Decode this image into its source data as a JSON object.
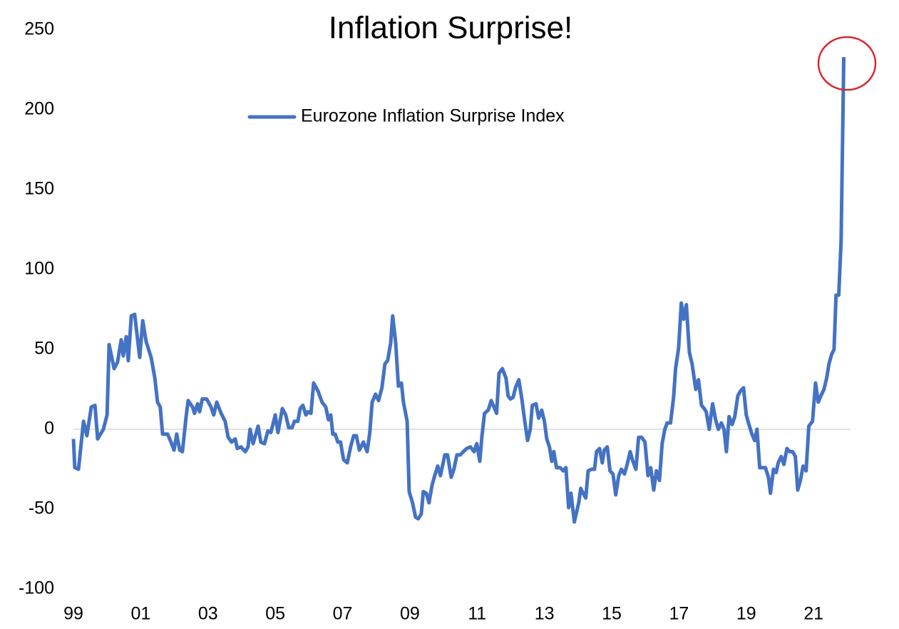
{
  "chart_data": {
    "type": "line",
    "title": "Inflation Surprise!",
    "xlim": [
      1999,
      2022.1
    ],
    "xticks": [
      {
        "value": 1999,
        "label": "99"
      },
      {
        "value": 2001,
        "label": "01"
      },
      {
        "value": 2003,
        "label": "03"
      },
      {
        "value": 2005,
        "label": "05"
      },
      {
        "value": 2007,
        "label": "07"
      },
      {
        "value": 2009,
        "label": "09"
      },
      {
        "value": 2011,
        "label": "11"
      },
      {
        "value": 2013,
        "label": "13"
      },
      {
        "value": 2015,
        "label": "15"
      },
      {
        "value": 2017,
        "label": "17"
      },
      {
        "value": 2019,
        "label": "19"
      },
      {
        "value": 2021,
        "label": "21"
      }
    ],
    "ylim": [
      -100,
      250
    ],
    "yticks": [
      -100,
      -50,
      0,
      50,
      100,
      150,
      200,
      250
    ],
    "legend": "top",
    "x": [
      1999.0,
      1999.04,
      1999.15,
      1999.3,
      1999.4,
      1999.53,
      1999.64,
      1999.72,
      1999.89,
      2000.0,
      2000.06,
      2000.21,
      2000.31,
      2000.42,
      2000.48,
      2000.57,
      2000.63,
      2000.72,
      2000.82,
      2000.97,
      2001.06,
      2001.16,
      2001.31,
      2001.42,
      2001.5,
      2001.58,
      2001.65,
      2001.8,
      2001.9,
      2001.99,
      2002.07,
      2002.16,
      2002.24,
      2002.35,
      2002.41,
      2002.54,
      2002.6,
      2002.69,
      2002.75,
      2002.83,
      2002.96,
      2003.09,
      2003.17,
      2003.26,
      2003.39,
      2003.51,
      2003.6,
      2003.7,
      2003.81,
      2003.87,
      2003.98,
      2004.11,
      2004.19,
      2004.25,
      2004.34,
      2004.49,
      2004.57,
      2004.68,
      2004.78,
      2004.87,
      2005.0,
      2005.08,
      2005.21,
      2005.31,
      2005.4,
      2005.5,
      2005.57,
      2005.67,
      2005.74,
      2005.82,
      2005.91,
      2005.97,
      2006.06,
      2006.14,
      2006.27,
      2006.39,
      2006.5,
      2006.58,
      2006.65,
      2006.71,
      2006.78,
      2006.86,
      2006.94,
      2007.03,
      2007.14,
      2007.24,
      2007.33,
      2007.41,
      2007.5,
      2007.62,
      2007.73,
      2007.81,
      2007.88,
      2007.98,
      2008.07,
      2008.17,
      2008.26,
      2008.34,
      2008.43,
      2008.49,
      2008.58,
      2008.66,
      2008.75,
      2008.81,
      2008.92,
      2008.98,
      2009.08,
      2009.17,
      2009.25,
      2009.34,
      2009.4,
      2009.49,
      2009.57,
      2009.66,
      2009.74,
      2009.83,
      2009.91,
      2010.04,
      2010.12,
      2010.23,
      2010.31,
      2010.4,
      2010.5,
      2010.59,
      2010.69,
      2010.8,
      2010.91,
      2010.99,
      2011.08,
      2011.14,
      2011.22,
      2011.33,
      2011.42,
      2011.52,
      2011.58,
      2011.65,
      2011.75,
      2011.86,
      2011.92,
      2011.99,
      2012.07,
      2012.14,
      2012.24,
      2012.33,
      2012.41,
      2012.5,
      2012.58,
      2012.64,
      2012.75,
      2012.83,
      2012.92,
      2013.0,
      2013.07,
      2013.15,
      2013.22,
      2013.28,
      2013.36,
      2013.47,
      2013.56,
      2013.64,
      2013.72,
      2013.79,
      2013.89,
      2014.02,
      2014.08,
      2014.15,
      2014.23,
      2014.3,
      2014.4,
      2014.49,
      2014.55,
      2014.64,
      2014.72,
      2014.78,
      2014.87,
      2014.95,
      2015.04,
      2015.12,
      2015.21,
      2015.29,
      2015.38,
      2015.46,
      2015.55,
      2015.63,
      2015.72,
      2015.8,
      2015.89,
      2015.99,
      2016.08,
      2016.16,
      2016.25,
      2016.33,
      2016.42,
      2016.5,
      2016.58,
      2016.65,
      2016.75,
      2016.84,
      2016.9,
      2016.99,
      2017.07,
      2017.14,
      2017.22,
      2017.31,
      2017.39,
      2017.5,
      2017.58,
      2017.67,
      2017.75,
      2017.81,
      2017.9,
      2018.0,
      2018.09,
      2018.17,
      2018.26,
      2018.34,
      2018.41,
      2018.49,
      2018.58,
      2018.66,
      2018.75,
      2018.83,
      2018.92,
      2019.0,
      2019.08,
      2019.17,
      2019.25,
      2019.32,
      2019.4,
      2019.49,
      2019.57,
      2019.66,
      2019.72,
      2019.81,
      2019.89,
      2019.95,
      2020.04,
      2020.12,
      2020.21,
      2020.29,
      2020.38,
      2020.46,
      2020.53,
      2020.61,
      2020.69,
      2020.78,
      2020.86,
      2020.97,
      2021.06,
      2021.14,
      2021.22,
      2021.31,
      2021.39,
      2021.46,
      2021.54,
      2021.61,
      2021.67,
      2021.75,
      2021.82,
      2021.9
    ],
    "series": [
      {
        "name": "Eurozone Inflation Surprise Index",
        "color": "#4472c4",
        "values": [
          -6,
          -24,
          -25,
          5,
          -4,
          14,
          15,
          -6,
          0,
          9,
          53,
          38,
          42,
          56,
          46,
          58,
          43,
          71,
          72,
          45,
          68,
          55,
          45,
          32,
          17,
          14,
          -3,
          -3,
          -8,
          -13,
          -3,
          -13,
          -14,
          8,
          18,
          14,
          10,
          16,
          11,
          19,
          19,
          14,
          9,
          17,
          10,
          5,
          -5,
          -8,
          -6,
          -12,
          -11,
          -14,
          -11,
          0,
          -9,
          2,
          -8,
          -9,
          -1,
          -2,
          9,
          -2,
          13,
          9,
          1,
          1,
          5,
          5,
          13,
          15,
          9,
          11,
          10,
          29,
          24,
          17,
          14,
          6,
          9,
          -3,
          -3,
          -8,
          -8,
          -19,
          -21,
          -11,
          -4,
          -4,
          -13,
          -8,
          -14,
          -2,
          17,
          22,
          18,
          26,
          41,
          43,
          54,
          71,
          54,
          27,
          29,
          17,
          5,
          -39,
          -46,
          -55,
          -56,
          -53,
          -39,
          -40,
          -46,
          -35,
          -29,
          -23,
          -29,
          -16,
          -16,
          -30,
          -25,
          -16,
          -16,
          -14,
          -12,
          -11,
          -14,
          -9,
          -20,
          -5,
          10,
          12,
          18,
          13,
          10,
          35,
          38,
          32,
          21,
          19,
          20,
          26,
          31,
          19,
          6,
          -7,
          0,
          15,
          16,
          7,
          12,
          5,
          -6,
          -11,
          -20,
          -14,
          -24,
          -24,
          -26,
          -24,
          -49,
          -40,
          -58,
          -46,
          -37,
          -40,
          -43,
          -26,
          -25,
          -25,
          -14,
          -12,
          -21,
          -13,
          -11,
          -26,
          -28,
          -41,
          -29,
          -25,
          -28,
          -22,
          -14,
          -20,
          -25,
          -5,
          -5,
          -8,
          -29,
          -24,
          -38,
          -26,
          -32,
          -9,
          0,
          4,
          4,
          20,
          38,
          51,
          79,
          69,
          78,
          48,
          41,
          25,
          31,
          15,
          13,
          11,
          0,
          16,
          6,
          0,
          4,
          0,
          -14,
          8,
          3,
          8,
          21,
          24,
          26,
          9,
          3,
          -3,
          -7,
          0,
          -24,
          -24,
          -24,
          -30,
          -40,
          -25,
          -27,
          -21,
          -17,
          -22,
          -12,
          -14,
          -14,
          -17,
          -38,
          -32,
          -23,
          -26,
          2,
          5,
          29,
          17,
          21,
          25,
          32,
          41,
          47,
          50,
          84,
          84,
          118,
          233
        ]
      }
    ]
  }
}
